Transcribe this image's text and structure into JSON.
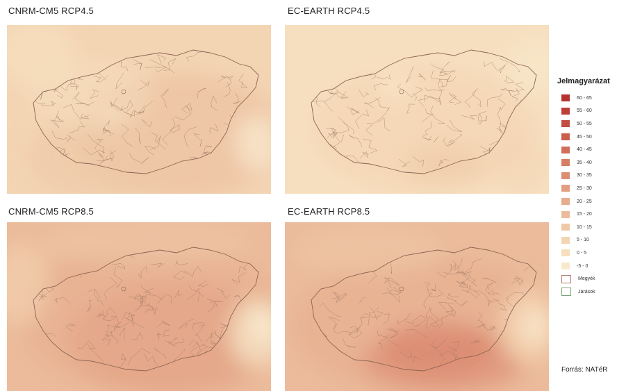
{
  "panels": [
    {
      "title": "CNRM-CM5 RCP4.5",
      "scenario": "rcp45-cnrm"
    },
    {
      "title": "EC-EARTH RCP4.5",
      "scenario": "rcp45-ec"
    },
    {
      "title": "CNRM-CM5 RCP8.5",
      "scenario": "rcp85-cnrm"
    },
    {
      "title": "EC-EARTH RCP8.5",
      "scenario": "rcp85-ec"
    }
  ],
  "legend": {
    "title": "Jelmagyarázat",
    "items": [
      {
        "label": "60 - 65",
        "color": "#b5322e"
      },
      {
        "label": "55 - 60",
        "color": "#bd3f38"
      },
      {
        "label": "50 - 55",
        "color": "#c44e42"
      },
      {
        "label": "45 - 50",
        "color": "#cb5e4d"
      },
      {
        "label": "40 - 45",
        "color": "#d16e59"
      },
      {
        "label": "35 - 40",
        "color": "#d67e66"
      },
      {
        "label": "30 - 35",
        "color": "#dc8e73"
      },
      {
        "label": "25 - 30",
        "color": "#e19e81"
      },
      {
        "label": "20 - 25",
        "color": "#e6ad8e"
      },
      {
        "label": "15 - 20",
        "color": "#ebbb9b"
      },
      {
        "label": "10 - 15",
        "color": "#efc8a7"
      },
      {
        "label": "5 - 10",
        "color": "#f3d4b3"
      },
      {
        "label": "0 - 5",
        "color": "#f6dfbf"
      },
      {
        "label": "-5 - 0",
        "color": "#f9e9cc"
      }
    ],
    "boundaries": [
      {
        "label": "Megyék",
        "color": "#b07a6a"
      },
      {
        "label": "Járások",
        "color": "#7aa57a"
      }
    ]
  },
  "source": "Forrás: NATéR"
}
